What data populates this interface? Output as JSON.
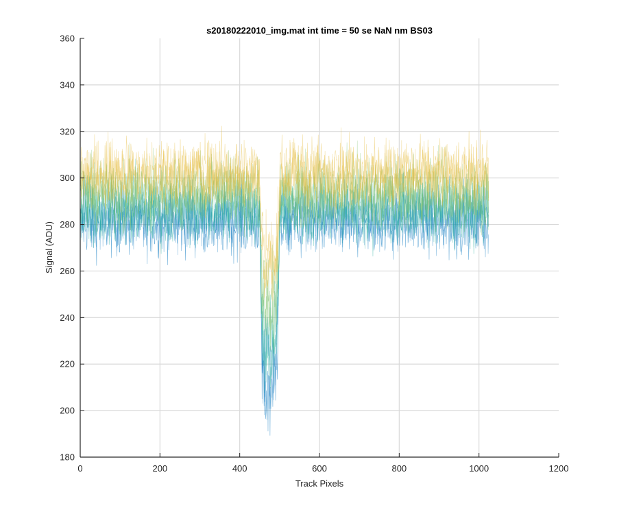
{
  "chart_data": {
    "type": "line",
    "title": "s20180222010_img.mat int time = 50 se  NaN nm BS03",
    "xlabel": "Track Pixels",
    "ylabel": "Signal (ADU)",
    "xlim": [
      0,
      1200
    ],
    "ylim": [
      180,
      360
    ],
    "xticks": [
      "0",
      "200",
      "400",
      "600",
      "800",
      "1000",
      "1200"
    ],
    "yticks": [
      "180",
      "200",
      "220",
      "240",
      "260",
      "280",
      "300",
      "320",
      "340",
      "360"
    ],
    "grid": true,
    "legend": "none",
    "x_range": [
      1,
      1024
    ],
    "series": [
      {
        "color": "#0072bd",
        "mean": 280,
        "noise": 15,
        "values_summary": "noise around 280 ADU; dip to about 200 ADU between x = 450 and 500"
      },
      {
        "color": "#2ab1a0",
        "mean": 285,
        "noise": 15,
        "values_summary": "noise around 285 ADU; dip to about 215 ADU between x = 450 and 500"
      },
      {
        "color": "#7ec06b",
        "mean": 292,
        "noise": 15,
        "values_summary": "noise around 292 ADU; dip to about 235 ADU between x = 450 and 500"
      },
      {
        "color": "#e5b935",
        "mean": 300,
        "noise": 15,
        "values_summary": "noise around 300 ADU; dip to about 255 ADU between x = 450 and 500"
      }
    ],
    "features": [
      {
        "x_start": 450,
        "x_end": 500,
        "min_value": 200
      }
    ]
  }
}
